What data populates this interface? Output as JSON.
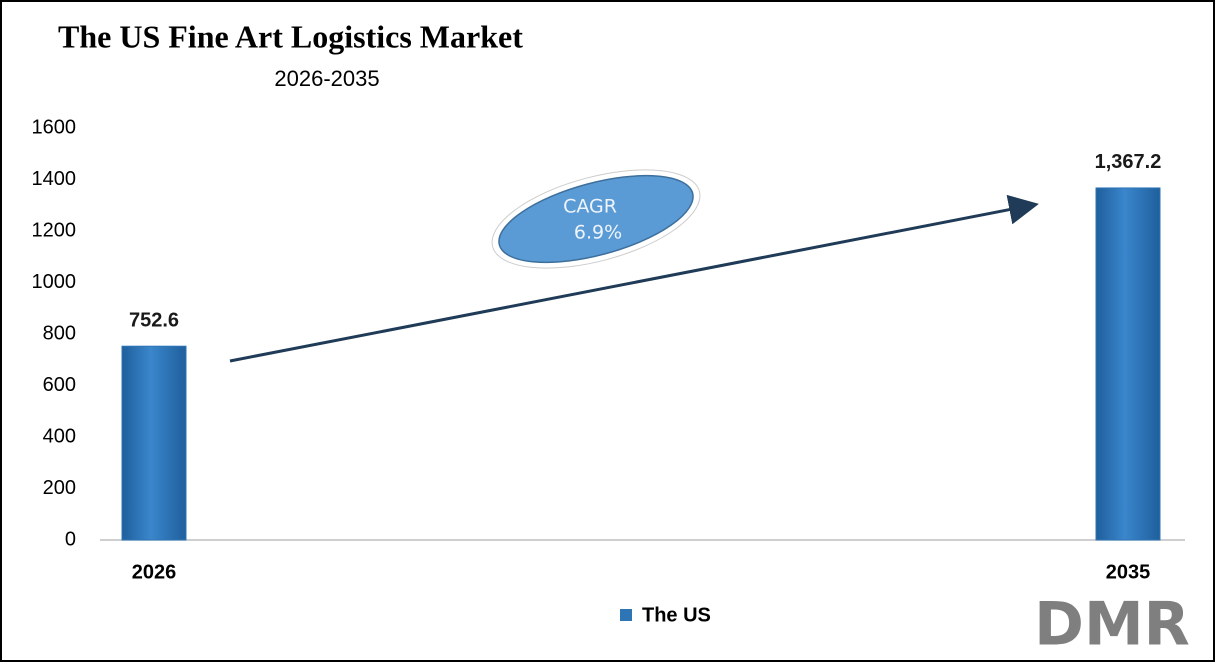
{
  "chart_data": {
    "type": "bar",
    "title": "The US Fine Art Logistics Market",
    "subtitle": "2026-2035",
    "categories": [
      "2026",
      "2035"
    ],
    "series": [
      {
        "name": "The US",
        "color": "#2e75b6",
        "values": [
          752.6,
          1367.2
        ],
        "value_labels": [
          "752.6",
          "1,367.2"
        ]
      }
    ],
    "ylim": [
      0,
      1600
    ],
    "yticks": [
      0,
      200,
      400,
      600,
      800,
      1000,
      1200,
      1400,
      1600
    ],
    "annotations": [
      "CAGR",
      "6.9%"
    ],
    "logo": "DMR",
    "legend": "bottom"
  }
}
